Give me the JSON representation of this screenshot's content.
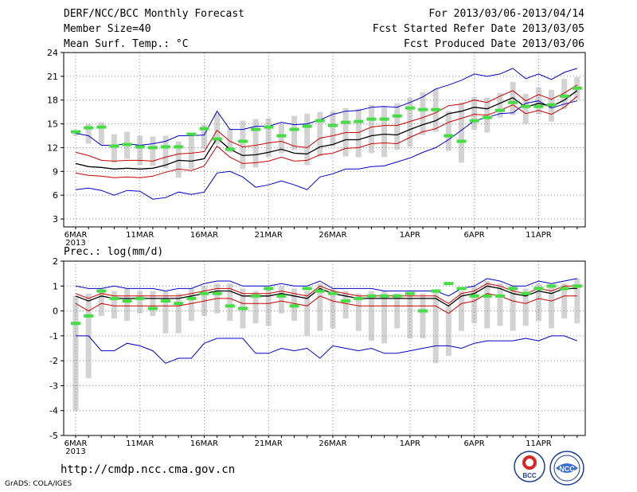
{
  "header": {
    "title": "DERF/NCC/BCC Monthly Forecast",
    "member_size": "Member Size=40",
    "period": "For 2013/03/06-2013/04/14",
    "fcst_started": "Fcst Started Refer Date 2013/03/05",
    "fcst_produced": "Fcst Produced Date 2013/03/06"
  },
  "footer": {
    "url": "http://cmdp.ncc.cma.gov.cn",
    "credit": "GrADS: COLA/IGES",
    "logo_bcc_label": "BCC",
    "logo_ncc_label": "NCC"
  },
  "colors": {
    "box": "#d3d3d3",
    "observed": "#44dd44",
    "mean": "#000000",
    "stdband": "#cc0000",
    "envelope": "#0000cc",
    "grid": "#888888"
  },
  "chart_data": [
    {
      "type": "ensemble-box-line",
      "title": "Mean Surf. Temp.: °C",
      "x_tick_labels": [
        "6MAR",
        "11MAR",
        "16MAR",
        "21MAR",
        "26MAR",
        "1APR",
        "6APR",
        "11APR"
      ],
      "x_tick_index": [
        0,
        5,
        10,
        15,
        20,
        26,
        31,
        36
      ],
      "year_label": "2013",
      "ylim": [
        2,
        24
      ],
      "yticks": [
        3,
        6,
        9,
        12,
        15,
        18,
        21,
        24
      ],
      "n_days": 40,
      "series": [
        {
          "name": "ensemble max",
          "values": [
            6.7,
            6.9,
            6.6,
            6.0,
            6.6,
            6.5,
            5.5,
            5.7,
            6.4,
            6.1,
            6.4,
            8.8,
            9.0,
            8.3,
            7.0,
            7.3,
            7.8,
            7.3,
            6.7,
            8.3,
            8.7,
            9.3,
            9.3,
            9.6,
            9.7,
            10.2,
            10.7,
            11.4,
            12.0,
            13.0,
            14.2,
            15.4,
            15.8,
            16.3,
            16.4,
            17.6,
            17.9,
            17.0,
            17.5,
            17.9
          ]
        },
        {
          "name": "ensemble mean",
          "values": [
            10.0,
            9.6,
            9.5,
            9.3,
            9.4,
            9.3,
            9.4,
            9.8,
            10.4,
            10.3,
            10.6,
            13.2,
            11.8,
            11.0,
            11.1,
            11.4,
            11.8,
            11.3,
            11.2,
            12.1,
            12.4,
            13.0,
            13.0,
            13.5,
            13.7,
            13.6,
            14.3,
            14.9,
            15.4,
            16.3,
            16.6,
            17.1,
            16.9,
            17.6,
            18.3,
            17.1,
            17.6,
            17.2,
            18.0,
            19.2
          ]
        },
        {
          "name": "mean + std",
          "values": [
            11.4,
            11.0,
            10.4,
            10.3,
            10.4,
            10.4,
            10.3,
            10.8,
            11.2,
            11.3,
            11.5,
            14.2,
            12.8,
            12.1,
            12.3,
            12.6,
            12.8,
            12.2,
            12.0,
            13.2,
            13.5,
            13.9,
            13.9,
            14.6,
            14.8,
            14.8,
            15.3,
            15.8,
            16.4,
            17.3,
            17.5,
            18.0,
            17.7,
            18.5,
            19.2,
            17.9,
            18.7,
            18.1,
            18.9,
            19.9
          ]
        },
        {
          "name": "mean - std",
          "values": [
            8.8,
            8.5,
            8.4,
            8.2,
            8.3,
            8.2,
            8.4,
            8.9,
            9.3,
            9.1,
            9.7,
            12.2,
            10.8,
            10.0,
            10.1,
            10.3,
            10.8,
            10.3,
            10.4,
            11.1,
            11.3,
            11.9,
            12.0,
            12.5,
            12.6,
            12.5,
            13.3,
            14.0,
            14.4,
            15.2,
            15.7,
            16.2,
            16.1,
            16.7,
            17.4,
            16.3,
            16.7,
            16.2,
            17.1,
            18.5
          ]
        },
        {
          "name": "ensemble min",
          "values": [
            13.8,
            13.5,
            12.3,
            12.3,
            12.5,
            12.3,
            12.5,
            12.8,
            13.5,
            13.5,
            13.6,
            16.6,
            14.3,
            14.3,
            14.7,
            14.7,
            15.2,
            14.9,
            15.0,
            15.5,
            16.2,
            16.6,
            16.7,
            17.1,
            17.2,
            17.1,
            17.7,
            18.4,
            19.4,
            19.9,
            20.5,
            21.3,
            21.0,
            21.3,
            22.0,
            20.7,
            21.3,
            20.6,
            21.5,
            22.0
          ]
        },
        {
          "name": "observed",
          "values": [
            14.0,
            14.5,
            14.6,
            12.2,
            12.4,
            12.1,
            12.0,
            12.1,
            12.1,
            13.7,
            14.4,
            13.1,
            11.8,
            12.8,
            14.3,
            14.6,
            13.5,
            14.3,
            14.7,
            15.4,
            14.8,
            15.2,
            15.3,
            15.6,
            15.6,
            16.0,
            17.0,
            16.8,
            16.8,
            13.5,
            12.8,
            15.4,
            15.8,
            16.7,
            17.7,
            17.2,
            17.2,
            17.4,
            18.5,
            19.5
          ]
        }
      ],
      "box_low": [
        13.5,
        12.5,
        12.4,
        10.1,
        10.6,
        9.8,
        9.7,
        9.4,
        8.2,
        9.3,
        11.9,
        12.4,
        11.4,
        9.3,
        9.5,
        10.8,
        11.3,
        11.7,
        9.8,
        10.9,
        12.2,
        10.9,
        10.8,
        11.3,
        10.8,
        11.7,
        12.1,
        13.6,
        14.0,
        11.6,
        10.1,
        14.3,
        13.9,
        15.8,
        16.1,
        15.0,
        16.2,
        15.3,
        16.9,
        18.1
      ],
      "box_high": [
        14.2,
        15.0,
        15.2,
        13.7,
        14.0,
        13.5,
        13.4,
        13.5,
        12.8,
        13.9,
        14.9,
        16.3,
        14.4,
        15.4,
        15.6,
        15.7,
        15.0,
        16.0,
        16.3,
        16.5,
        16.6,
        17.0,
        16.9,
        17.4,
        17.2,
        17.6,
        18.3,
        19.0,
        19.4,
        16.6,
        17.7,
        18.4,
        18.3,
        18.9,
        20.3,
        18.8,
        19.6,
        19.3,
        20.7,
        20.9
      ]
    },
    {
      "type": "ensemble-box-line",
      "title": "Prec.: log(mm/d)",
      "x_tick_labels": [
        "6MAR",
        "11MAR",
        "16MAR",
        "21MAR",
        "26MAR",
        "1APR",
        "6APR",
        "11APR"
      ],
      "x_tick_index": [
        0,
        5,
        10,
        15,
        20,
        26,
        31,
        36
      ],
      "year_label": "2013",
      "ylim": [
        -5,
        2
      ],
      "yticks": [
        -5,
        -4,
        -3,
        -2,
        -1,
        0,
        1,
        2
      ],
      "n_days": 40,
      "series": [
        {
          "name": "ensemble max",
          "values": [
            1.0,
            0.9,
            0.9,
            1.0,
            0.9,
            0.9,
            0.9,
            0.8,
            0.9,
            0.9,
            1.1,
            1.2,
            1.2,
            1.0,
            1.0,
            1.0,
            1.1,
            1.0,
            1.0,
            1.2,
            0.9,
            0.9,
            0.9,
            0.9,
            0.8,
            0.8,
            0.8,
            0.8,
            0.8,
            0.6,
            0.9,
            1.0,
            1.3,
            1.2,
            1.0,
            1.0,
            1.2,
            1.1,
            1.2,
            1.3
          ]
        },
        {
          "name": "ensemble mean",
          "values": [
            0.6,
            0.4,
            0.6,
            0.5,
            0.5,
            0.5,
            0.5,
            0.5,
            0.5,
            0.6,
            0.7,
            0.8,
            0.8,
            0.6,
            0.6,
            0.6,
            0.7,
            0.6,
            0.5,
            0.9,
            0.7,
            0.6,
            0.5,
            0.5,
            0.5,
            0.5,
            0.5,
            0.5,
            0.5,
            0.2,
            0.6,
            0.7,
            1.0,
            0.9,
            0.7,
            0.6,
            0.8,
            0.7,
            0.9,
            0.9
          ]
        },
        {
          "name": "mean + std",
          "values": [
            0.7,
            0.5,
            0.7,
            0.6,
            0.6,
            0.6,
            0.6,
            0.6,
            0.6,
            0.7,
            0.8,
            0.9,
            0.9,
            0.7,
            0.7,
            0.7,
            0.8,
            0.7,
            0.6,
            1.0,
            0.8,
            0.7,
            0.6,
            0.6,
            0.6,
            0.6,
            0.6,
            0.6,
            0.6,
            0.3,
            0.7,
            0.8,
            1.1,
            1.0,
            0.8,
            0.7,
            0.9,
            0.8,
            1.0,
            1.0
          ]
        },
        {
          "name": "mean - std",
          "values": [
            0.3,
            0.0,
            0.3,
            0.2,
            0.2,
            0.2,
            0.2,
            0.2,
            0.2,
            0.3,
            0.4,
            0.5,
            0.5,
            0.3,
            0.3,
            0.3,
            0.4,
            0.3,
            0.2,
            0.6,
            0.4,
            0.3,
            0.2,
            0.2,
            0.2,
            0.2,
            0.2,
            0.2,
            0.2,
            -0.1,
            0.3,
            0.4,
            0.7,
            0.6,
            0.4,
            0.3,
            0.5,
            0.4,
            0.6,
            0.6
          ]
        },
        {
          "name": "ensemble min",
          "values": [
            -1.0,
            -1.0,
            -1.6,
            -1.6,
            -1.3,
            -1.4,
            -1.6,
            -2.1,
            -1.9,
            -1.9,
            -1.3,
            -1.1,
            -1.1,
            -1.1,
            -1.7,
            -1.7,
            -1.5,
            -1.6,
            -1.5,
            -1.9,
            -1.4,
            -1.5,
            -1.6,
            -1.5,
            -1.7,
            -1.7,
            -1.6,
            -1.5,
            -1.4,
            -1.4,
            -1.5,
            -1.3,
            -1.2,
            -1.2,
            -1.2,
            -1.1,
            -1.2,
            -1.0,
            -1.0,
            -1.2
          ]
        },
        {
          "name": "observed",
          "values": [
            -0.5,
            -0.2,
            0.8,
            0.5,
            0.4,
            0.5,
            0.1,
            0.4,
            0.3,
            0.5,
            0.7,
            0.7,
            0.2,
            0.1,
            0.6,
            0.9,
            0.6,
            0.2,
            0.9,
            0.8,
            0.7,
            0.4,
            0.5,
            0.6,
            0.6,
            0.6,
            0.7,
            0.0,
            0.8,
            1.1,
            0.9,
            0.6,
            0.6,
            0.6,
            0.9,
            0.7,
            0.9,
            1.0,
            0.9,
            1.0
          ]
        }
      ],
      "box_low": [
        -4.0,
        -2.7,
        -0.2,
        -0.3,
        -0.4,
        -0.1,
        -0.2,
        -0.9,
        -0.9,
        -0.4,
        -0.2,
        -0.1,
        -0.4,
        -0.7,
        -0.5,
        -0.6,
        -0.1,
        -0.4,
        -1.0,
        -0.8,
        -0.7,
        -0.3,
        -0.8,
        -1.2,
        -1.3,
        -0.7,
        -1.1,
        -1.1,
        -2.1,
        -1.8,
        -0.8,
        -0.5,
        -0.7,
        -0.6,
        -0.8,
        -0.6,
        -0.4,
        -0.7,
        -0.3,
        -0.5
      ],
      "box_high": [
        0.6,
        0.7,
        0.9,
        0.8,
        0.9,
        0.8,
        0.8,
        0.8,
        0.7,
        0.9,
        1.0,
        1.1,
        1.1,
        0.9,
        0.8,
        0.9,
        1.0,
        0.9,
        0.8,
        1.1,
        0.9,
        0.8,
        0.7,
        0.8,
        0.8,
        0.7,
        0.7,
        0.7,
        0.8,
        0.2,
        0.8,
        1.0,
        1.2,
        1.1,
        1.0,
        0.9,
        1.1,
        1.0,
        1.1,
        1.3
      ]
    }
  ]
}
